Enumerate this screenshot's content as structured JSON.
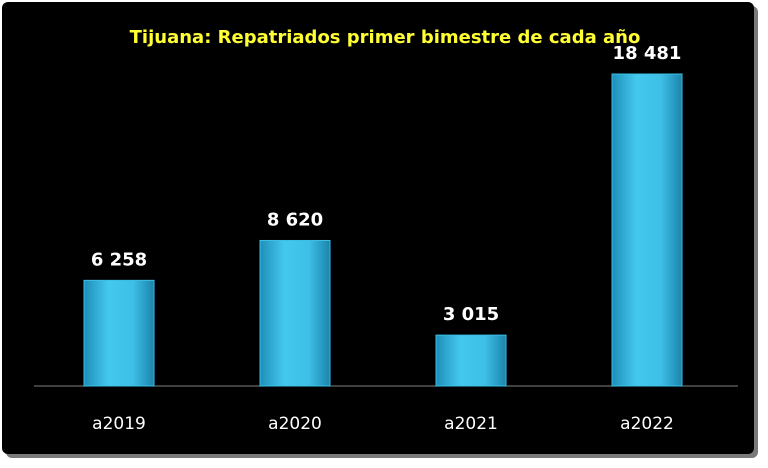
{
  "chart_data": {
    "type": "bar",
    "title": "Tijuana: Repatriados primer bimestre de cada año",
    "categories": [
      "a2019",
      "a2020",
      "a2021",
      "a2022"
    ],
    "values": [
      6258,
      8620,
      3015,
      18481
    ],
    "value_labels": [
      "6 258",
      "8 620",
      "3 015",
      "18 481"
    ],
    "color": "#3dbfe6"
  }
}
